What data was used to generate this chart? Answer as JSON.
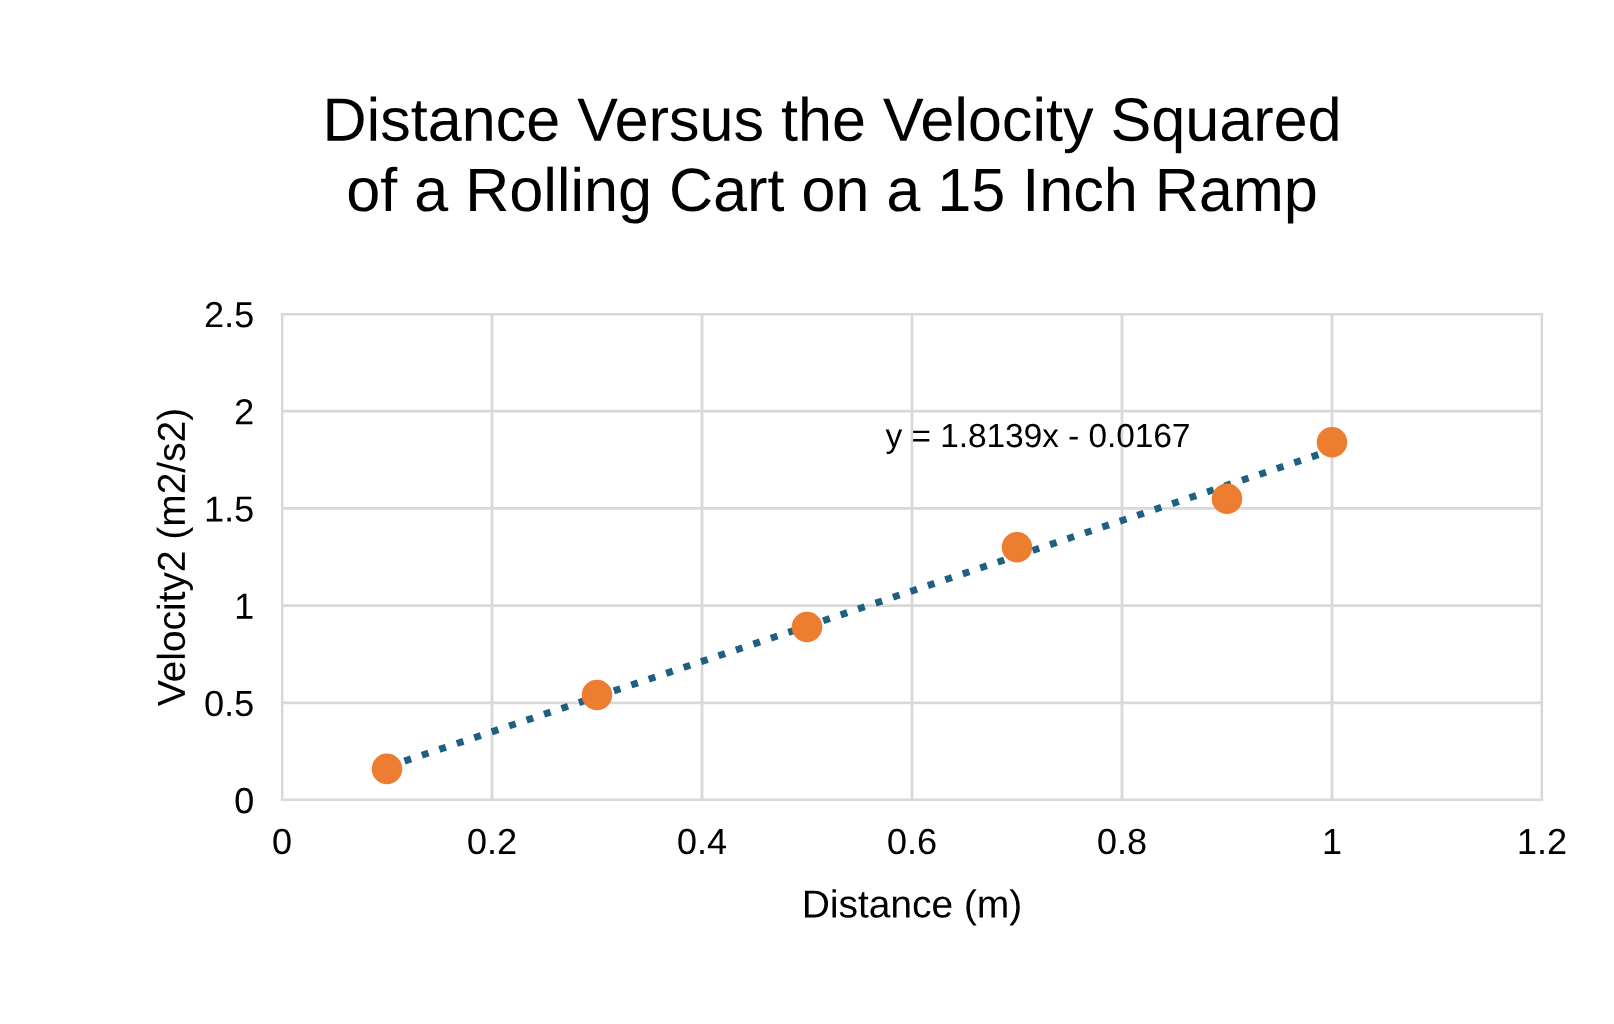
{
  "chart_data": {
    "type": "scatter",
    "title": "Distance Versus the Velocity Squared\nof a Rolling Cart on a 15 Inch Ramp",
    "xlabel": "Distance (m)",
    "ylabel": "Velocity2 (m2/s2)",
    "series": [
      {
        "color": "#ed7d31",
        "x": [
          0.1,
          0.3,
          0.5,
          0.7,
          0.9,
          1.0
        ],
        "values": [
          0.16,
          0.54,
          0.89,
          1.3,
          1.55,
          1.84
        ],
        "marker": "circle"
      },
      {
        "type": "line",
        "color": "#1f6080",
        "x": [
          0.1,
          1.0
        ],
        "values": [
          0.17,
          1.8
        ],
        "line_style": "dotted"
      }
    ],
    "annotations": [
      "y = 1.8139x - 0.0167"
    ],
    "xlim": [
      0,
      1.2
    ],
    "xticks": [
      0,
      0.2,
      0.4,
      0.6,
      0.8,
      1,
      1.2
    ],
    "ylim": [
      0,
      2.5
    ],
    "yticks": [
      0,
      0.5,
      1,
      1.5,
      2,
      2.5
    ],
    "grid": true
  }
}
